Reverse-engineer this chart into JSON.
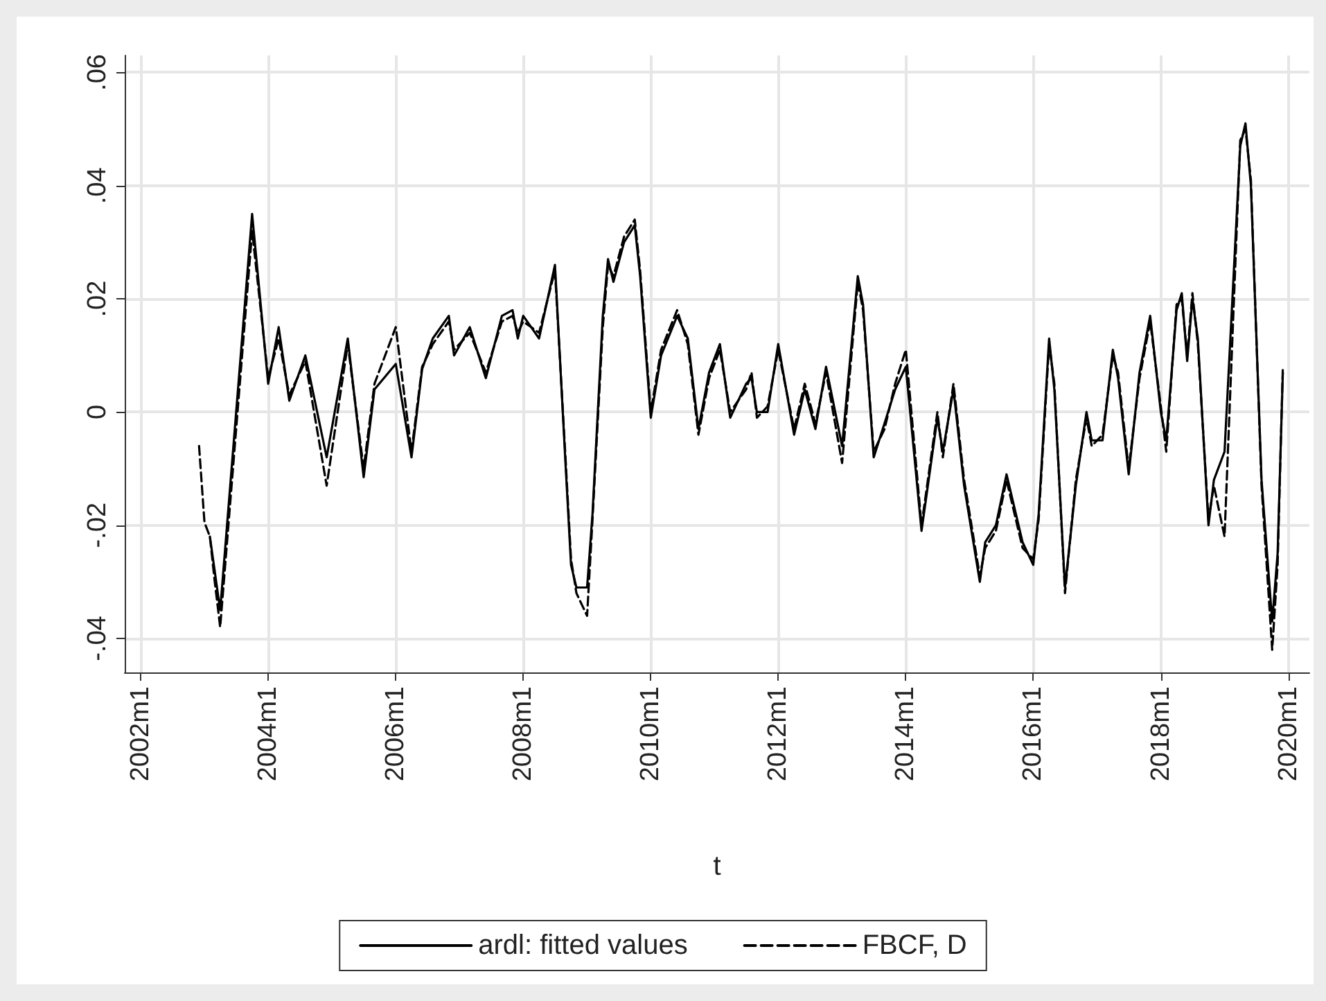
{
  "chart_data": {
    "type": "line",
    "xlabel": "t",
    "xlim": [
      "2001-10",
      "2020-05"
    ],
    "ylim": [
      -0.046,
      0.063
    ],
    "xticks": [
      {
        "value": "2002-01",
        "label": "2002m1"
      },
      {
        "value": "2004-01",
        "label": "2004m1"
      },
      {
        "value": "2006-01",
        "label": "2006m1"
      },
      {
        "value": "2008-01",
        "label": "2008m1"
      },
      {
        "value": "2010-01",
        "label": "2010m1"
      },
      {
        "value": "2012-01",
        "label": "2012m1"
      },
      {
        "value": "2014-01",
        "label": "2014m1"
      },
      {
        "value": "2016-01",
        "label": "2016m1"
      },
      {
        "value": "2018-01",
        "label": "2018m1"
      },
      {
        "value": "2020-01",
        "label": "2020m1"
      }
    ],
    "yticks": [
      {
        "value": -0.04,
        "label": "-.04"
      },
      {
        "value": -0.02,
        "label": "-.02"
      },
      {
        "value": 0,
        "label": "0"
      },
      {
        "value": 0.02,
        "label": ".02"
      },
      {
        "value": 0.04,
        "label": ".04"
      },
      {
        "value": 0.06,
        "label": ".06"
      }
    ],
    "grid": true,
    "legend": "bottom",
    "marker": "none",
    "series": [
      {
        "name": "ardl: fitted values",
        "color": "#000000",
        "line_style": "solid",
        "x": [
          "2003-02",
          "2003-04",
          "2003-10",
          "2004-01",
          "2004-03",
          "2004-05",
          "2004-08",
          "2004-12",
          "2005-04",
          "2005-07",
          "2005-09",
          "2006-01",
          "2006-04",
          "2006-06",
          "2006-08",
          "2006-11",
          "2006-12",
          "2007-03",
          "2007-06",
          "2007-09",
          "2007-11",
          "2007-12",
          "2008-01",
          "2008-04",
          "2008-07",
          "2008-09",
          "2008-10",
          "2008-11",
          "2009-01",
          "2009-02",
          "2009-04",
          "2009-05",
          "2009-06",
          "2009-08",
          "2009-10",
          "2009-11",
          "2010-01",
          "2010-03",
          "2010-06",
          "2010-08",
          "2010-10",
          "2010-12",
          "2011-02",
          "2011-04",
          "2011-07",
          "2011-08",
          "2011-09",
          "2011-11",
          "2012-01",
          "2012-04",
          "2012-06",
          "2012-08",
          "2012-10",
          "2013-01",
          "2013-04",
          "2013-05",
          "2013-07",
          "2013-09",
          "2013-11",
          "2014-01",
          "2014-04",
          "2014-07",
          "2014-08",
          "2014-10",
          "2014-12",
          "2015-03",
          "2015-04",
          "2015-06",
          "2015-08",
          "2015-11",
          "2016-01",
          "2016-02",
          "2016-04",
          "2016-05",
          "2016-07",
          "2016-09",
          "2016-11",
          "2016-12",
          "2017-02",
          "2017-04",
          "2017-05",
          "2017-07",
          "2017-09",
          "2017-11",
          "2018-01",
          "2018-02",
          "2018-04",
          "2018-05",
          "2018-06",
          "2018-07",
          "2018-08",
          "2018-10",
          "2018-11",
          "2019-01",
          "2019-04",
          "2019-05",
          "2019-06",
          "2019-08",
          "2019-10",
          "2019-11",
          "2019-12"
        ],
        "values": [
          -0.022,
          -0.035,
          0.035,
          0.005,
          0.015,
          0.002,
          0.01,
          -0.008,
          0.013,
          -0.0115,
          0.004,
          0.0085,
          -0.008,
          0.0076,
          0.013,
          0.017,
          0.01,
          0.015,
          0.006,
          0.017,
          0.018,
          0.013,
          0.017,
          0.013,
          0.026,
          -0.01,
          -0.027,
          -0.031,
          -0.031,
          -0.018,
          0.017,
          0.027,
          0.023,
          0.03,
          0.033,
          0.024,
          -0.001,
          0.01,
          0.017,
          0.013,
          -0.003,
          0.007,
          0.012,
          -0.001,
          0.005,
          0.006,
          0,
          0,
          0.012,
          -0.004,
          0.004,
          -0.003,
          0.008,
          -0.006,
          0.024,
          0.019,
          -0.008,
          -0.002,
          0.004,
          0.008,
          -0.021,
          -0.001,
          -0.007,
          0.004,
          -0.013,
          -0.03,
          -0.023,
          -0.02,
          -0.011,
          -0.023,
          -0.027,
          -0.018,
          0.013,
          0.004,
          -0.031,
          -0.013,
          0,
          -0.005,
          -0.005,
          0.011,
          0.006,
          -0.011,
          0.007,
          0.017,
          0,
          -0.005,
          0.018,
          0.021,
          0.009,
          0.02,
          0.013,
          -0.02,
          -0.012,
          -0.007,
          0.047,
          0.051,
          0.04,
          -0.012,
          -0.037,
          -0.025,
          0.007
        ]
      },
      {
        "name": "FBCF, D",
        "color": "#000000",
        "line_style": "dashed",
        "x": [
          "2002-12",
          "2003-01",
          "2003-02",
          "2003-03",
          "2003-04",
          "2003-10",
          "2004-01",
          "2004-03",
          "2004-05",
          "2004-08",
          "2004-12",
          "2005-04",
          "2005-07",
          "2005-09",
          "2006-01",
          "2006-04",
          "2006-06",
          "2006-08",
          "2006-11",
          "2006-12",
          "2007-03",
          "2007-06",
          "2007-09",
          "2007-11",
          "2007-12",
          "2008-01",
          "2008-04",
          "2008-07",
          "2008-09",
          "2008-10",
          "2008-11",
          "2009-01",
          "2009-02",
          "2009-04",
          "2009-05",
          "2009-06",
          "2009-08",
          "2009-10",
          "2009-11",
          "2010-01",
          "2010-03",
          "2010-06",
          "2010-08",
          "2010-10",
          "2010-12",
          "2011-02",
          "2011-04",
          "2011-07",
          "2011-08",
          "2011-09",
          "2011-11",
          "2012-01",
          "2012-04",
          "2012-06",
          "2012-08",
          "2012-10",
          "2013-01",
          "2013-04",
          "2013-05",
          "2013-07",
          "2013-09",
          "2013-11",
          "2014-01",
          "2014-04",
          "2014-07",
          "2014-08",
          "2014-10",
          "2014-12",
          "2015-03",
          "2015-04",
          "2015-06",
          "2015-08",
          "2015-11",
          "2016-01",
          "2016-02",
          "2016-04",
          "2016-05",
          "2016-07",
          "2016-09",
          "2016-11",
          "2016-12",
          "2017-02",
          "2017-04",
          "2017-05",
          "2017-07",
          "2017-09",
          "2017-11",
          "2018-01",
          "2018-02",
          "2018-04",
          "2018-05",
          "2018-06",
          "2018-07",
          "2018-08",
          "2018-10",
          "2018-11",
          "2019-01",
          "2019-04",
          "2019-05",
          "2019-06",
          "2019-08",
          "2019-10",
          "2019-11",
          "2019-12"
        ],
        "values": [
          -0.006,
          -0.0195,
          -0.022,
          -0.03,
          -0.038,
          0.032,
          0.006,
          0.013,
          0.003,
          0.009,
          -0.013,
          0.012,
          -0.01,
          0.005,
          0.015,
          -0.007,
          0.008,
          0.012,
          0.016,
          0.011,
          0.014,
          0.007,
          0.016,
          0.017,
          0.014,
          0.016,
          0.014,
          0.025,
          -0.009,
          -0.026,
          -0.032,
          -0.036,
          -0.019,
          0.015,
          0.026,
          0.024,
          0.031,
          0.034,
          0.025,
          0,
          0.011,
          0.018,
          0.012,
          -0.004,
          0.006,
          0.011,
          0,
          0.004,
          0.007,
          -0.001,
          0.001,
          0.011,
          -0.003,
          0.005,
          -0.002,
          0.007,
          -0.009,
          0.023,
          0.018,
          -0.007,
          -0.003,
          0.005,
          0.011,
          -0.02,
          0,
          -0.008,
          0.005,
          -0.012,
          -0.029,
          -0.024,
          -0.021,
          -0.012,
          -0.024,
          -0.026,
          -0.019,
          0.012,
          0.005,
          -0.032,
          -0.012,
          -0.001,
          -0.006,
          -0.004,
          0.01,
          0.007,
          -0.01,
          0.006,
          0.016,
          0.001,
          -0.007,
          0.019,
          0.02,
          0.01,
          0.021,
          0.012,
          -0.019,
          -0.013,
          -0.022,
          0.048,
          0.05,
          0.041,
          -0.013,
          -0.042,
          -0.027,
          0.008
        ]
      }
    ]
  }
}
